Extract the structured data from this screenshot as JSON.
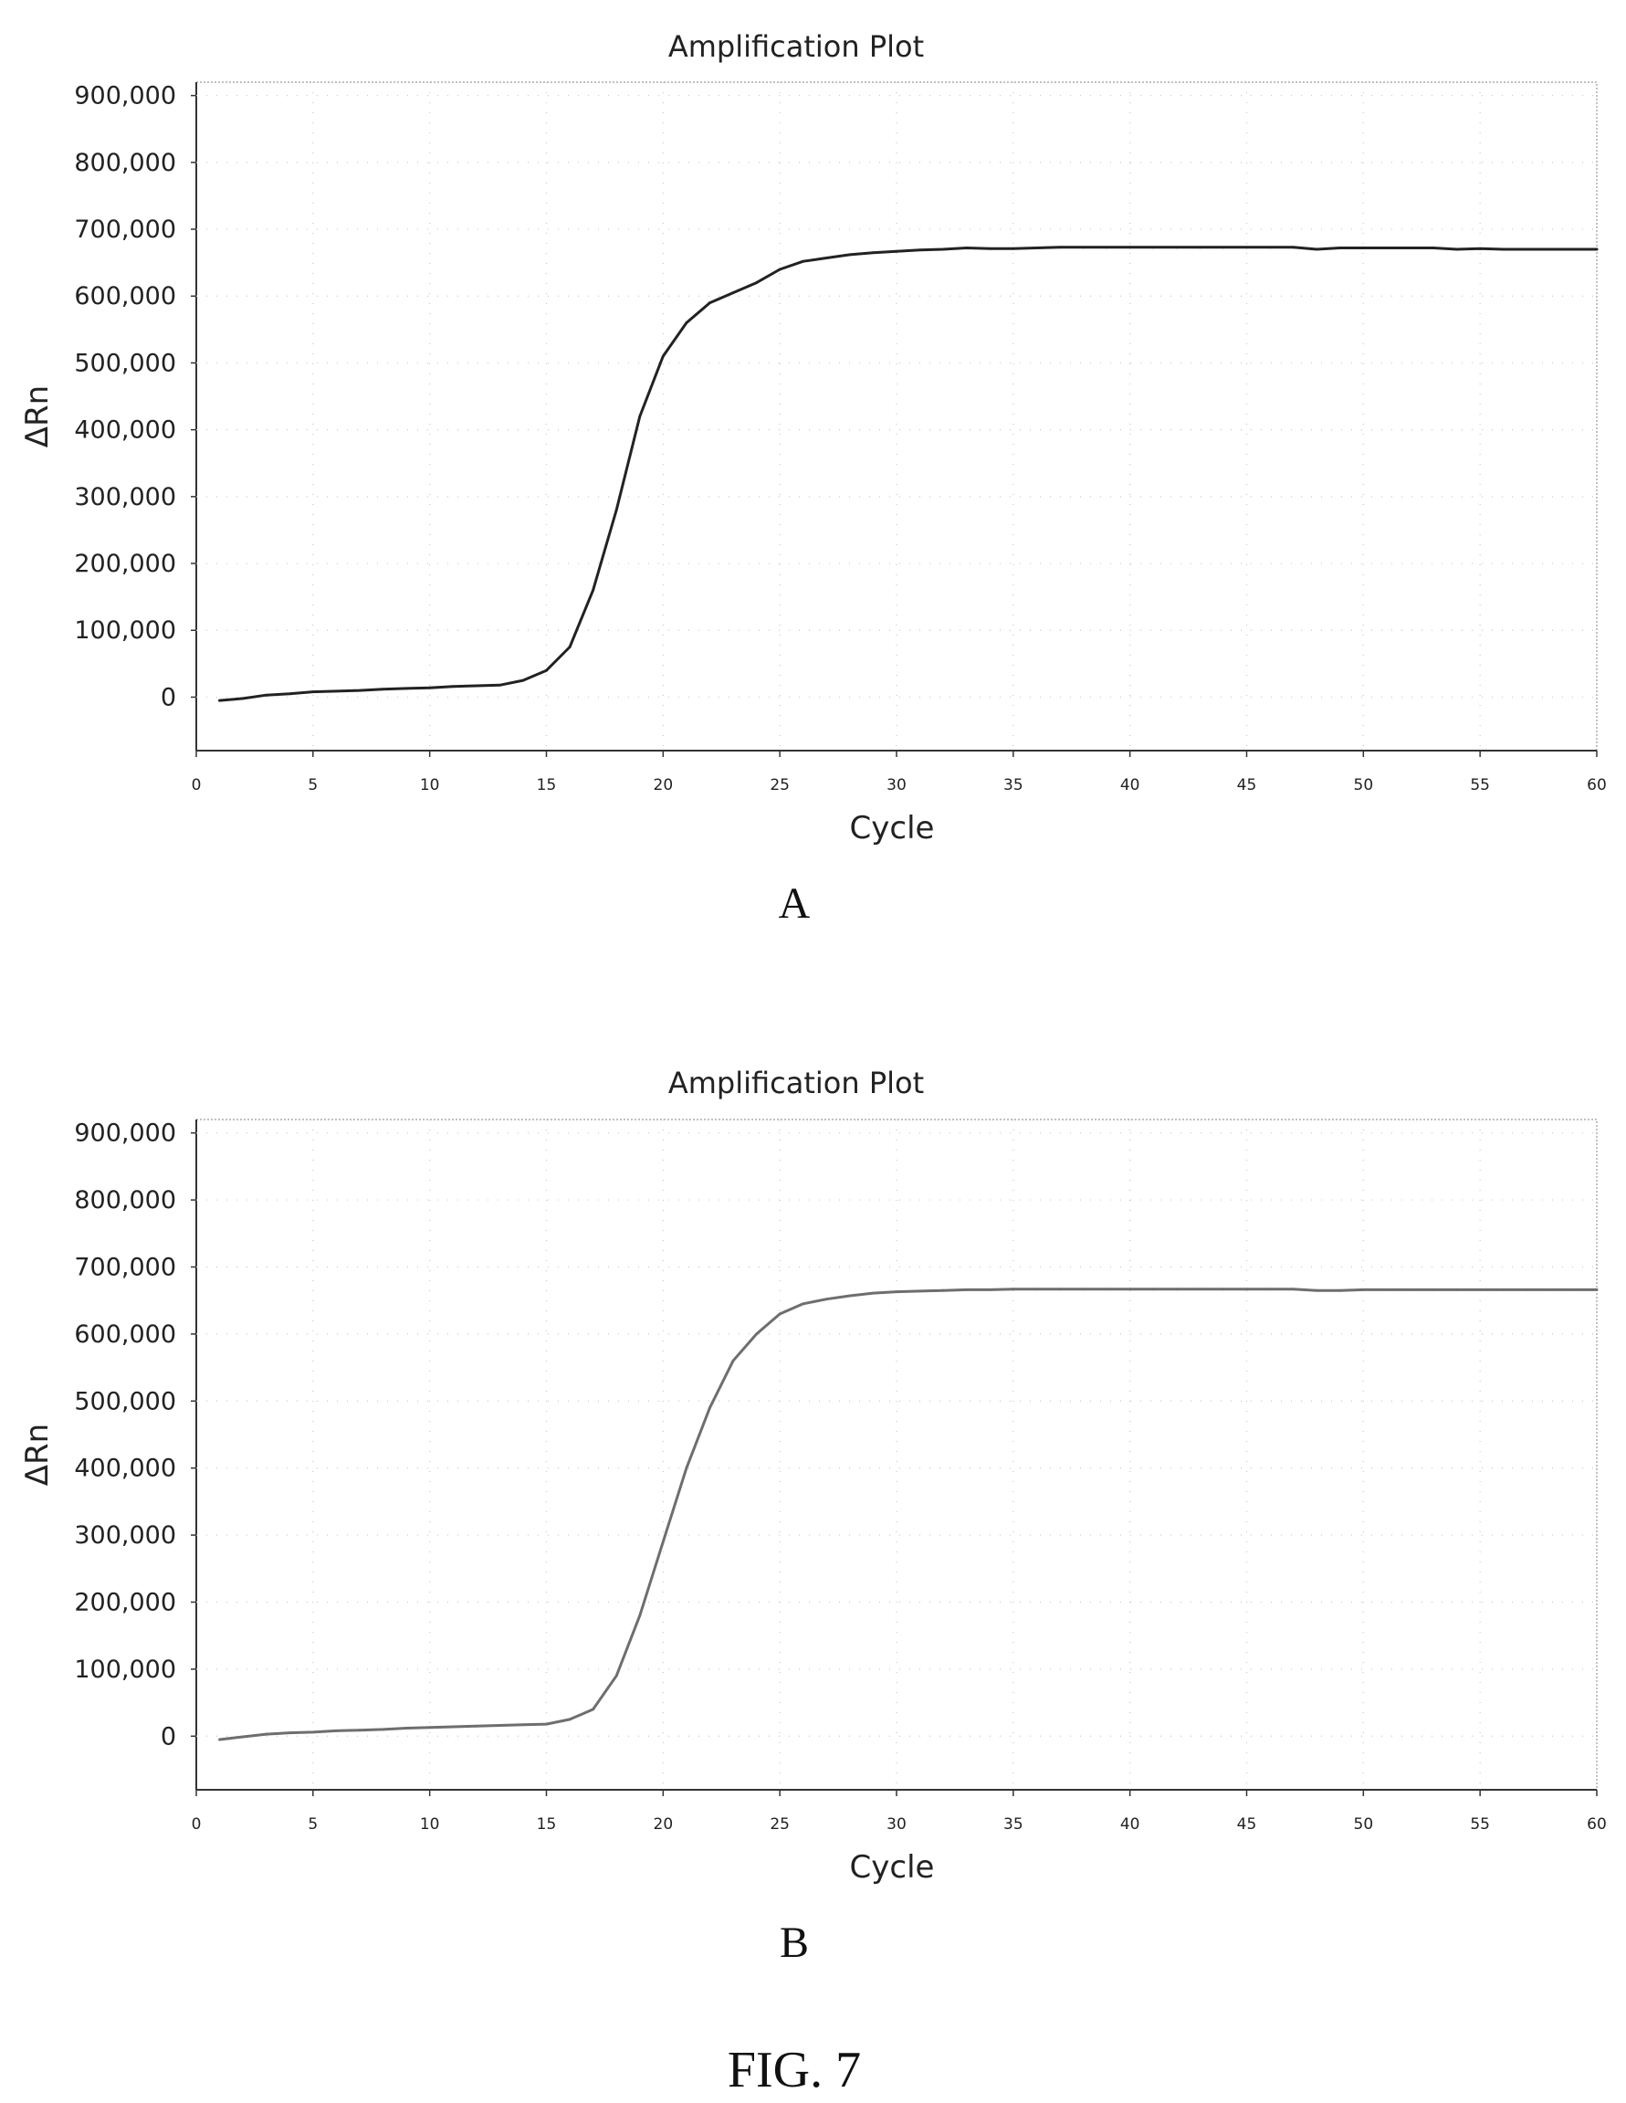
{
  "figure_label": "FIG. 7",
  "chart_data": [
    {
      "type": "line",
      "panel_label": "A",
      "title": "Amplification Plot",
      "xlabel": "Cycle",
      "ylabel": "ΔRn",
      "xlim": [
        0,
        60
      ],
      "ylim": [
        -80000,
        920000
      ],
      "xticks": [
        0,
        5,
        10,
        15,
        20,
        25,
        30,
        35,
        40,
        45,
        50,
        55,
        60
      ],
      "xtick_labels": [
        "0",
        "5",
        "10",
        "15",
        "20",
        "25",
        "30",
        "35",
        "40",
        "45",
        "50",
        "55",
        "60"
      ],
      "yticks": [
        0,
        100000,
        200000,
        300000,
        400000,
        500000,
        600000,
        700000,
        800000,
        900000
      ],
      "ytick_labels": [
        "0",
        "100,000",
        "200,000",
        "300,000",
        "400,000",
        "500,000",
        "600,000",
        "700,000",
        "800,000",
        "900,000"
      ],
      "grid": true,
      "line_color": "#222222",
      "series": [
        {
          "x": [
            1,
            2,
            3,
            4,
            5,
            6,
            7,
            8,
            9,
            10,
            11,
            12,
            13,
            14,
            15,
            16,
            17,
            18,
            19,
            20,
            21,
            22,
            23,
            24,
            25,
            26,
            27,
            28,
            29,
            30,
            31,
            32,
            33,
            34,
            35,
            36,
            37,
            38,
            39,
            40,
            41,
            42,
            43,
            44,
            45,
            46,
            47,
            48,
            49,
            50,
            51,
            52,
            53,
            54,
            55,
            56,
            57,
            58,
            59,
            60
          ],
          "values": [
            -5000,
            -2000,
            3000,
            5000,
            8000,
            9000,
            10000,
            12000,
            13000,
            14000,
            16000,
            17000,
            18000,
            25000,
            40000,
            75000,
            160000,
            280000,
            420000,
            510000,
            560000,
            590000,
            605000,
            620000,
            640000,
            652000,
            657000,
            662000,
            665000,
            667000,
            669000,
            670000,
            672000,
            671000,
            671000,
            672000,
            673000,
            673000,
            673000,
            673000,
            673000,
            673000,
            673000,
            673000,
            673000,
            673000,
            673000,
            670000,
            672000,
            672000,
            672000,
            672000,
            672000,
            670000,
            671000,
            670000,
            670000,
            670000,
            670000,
            670000
          ]
        }
      ]
    },
    {
      "type": "line",
      "panel_label": "B",
      "title": "Amplification Plot",
      "xlabel": "Cycle",
      "ylabel": "ΔRn",
      "xlim": [
        0,
        60
      ],
      "ylim": [
        -80000,
        920000
      ],
      "xticks": [
        0,
        5,
        10,
        15,
        20,
        25,
        30,
        35,
        40,
        45,
        50,
        55,
        60
      ],
      "xtick_labels": [
        "0",
        "5",
        "10",
        "15",
        "20",
        "25",
        "30",
        "35",
        "40",
        "45",
        "50",
        "55",
        "60"
      ],
      "yticks": [
        0,
        100000,
        200000,
        300000,
        400000,
        500000,
        600000,
        700000,
        800000,
        900000
      ],
      "ytick_labels": [
        "0",
        "100,000",
        "200,000",
        "300,000",
        "400,000",
        "500,000",
        "600,000",
        "700,000",
        "800,000",
        "900,000"
      ],
      "grid": true,
      "line_color": "#6e6e6e",
      "series": [
        {
          "x": [
            1,
            2,
            3,
            4,
            5,
            6,
            7,
            8,
            9,
            10,
            11,
            12,
            13,
            14,
            15,
            16,
            17,
            18,
            19,
            20,
            21,
            22,
            23,
            24,
            25,
            26,
            27,
            28,
            29,
            30,
            31,
            32,
            33,
            34,
            35,
            36,
            37,
            38,
            39,
            40,
            41,
            42,
            43,
            44,
            45,
            46,
            47,
            48,
            49,
            50,
            51,
            52,
            53,
            54,
            55,
            56,
            57,
            58,
            59,
            60
          ],
          "values": [
            -5000,
            -1000,
            3000,
            5000,
            6000,
            8000,
            9000,
            10000,
            12000,
            13000,
            14000,
            15000,
            16000,
            17000,
            18000,
            25000,
            40000,
            90000,
            180000,
            290000,
            400000,
            490000,
            560000,
            600000,
            630000,
            645000,
            652000,
            657000,
            661000,
            663000,
            664000,
            665000,
            666000,
            666000,
            667000,
            667000,
            667000,
            667000,
            667000,
            667000,
            667000,
            667000,
            667000,
            667000,
            667000,
            667000,
            667000,
            665000,
            665000,
            666000,
            666000,
            666000,
            666000,
            666000,
            666000,
            666000,
            666000,
            666000,
            666000,
            666000
          ]
        }
      ]
    }
  ]
}
